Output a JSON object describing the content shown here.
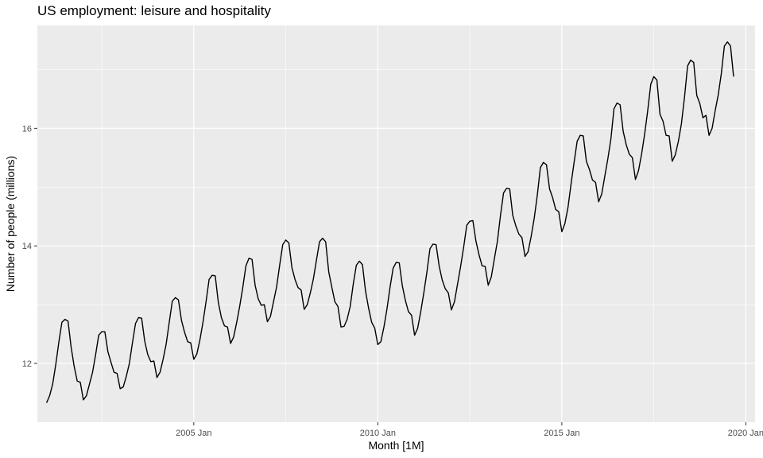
{
  "chart_data": {
    "type": "line",
    "title": "US employment: leisure and hospitality",
    "xlabel": "Month [1M]",
    "ylabel": "Number of people (millions)",
    "x_ticks": [
      "2005 Jan",
      "2010 Jan",
      "2015 Jan",
      "2020 Jan"
    ],
    "y_ticks": [
      12,
      14,
      16
    ],
    "xlim": [
      "2000-10",
      "2020-04"
    ],
    "ylim": [
      11.0,
      17.75
    ],
    "grid": true,
    "legend": "none",
    "colors": {
      "panel": "#ebebeb",
      "grid": "#ffffff",
      "line": "#000000"
    },
    "series": [
      {
        "start": "2001-01",
        "frequency": "monthly",
        "values": [
          11.33,
          11.45,
          11.65,
          11.98,
          12.36,
          12.7,
          12.75,
          12.72,
          12.28,
          11.95,
          11.7,
          11.68,
          11.38,
          11.45,
          11.65,
          11.85,
          12.15,
          12.48,
          12.54,
          12.54,
          12.2,
          12.02,
          11.85,
          11.83,
          11.57,
          11.6,
          11.78,
          12.0,
          12.35,
          12.68,
          12.78,
          12.77,
          12.38,
          12.15,
          12.03,
          12.04,
          11.76,
          11.85,
          12.07,
          12.33,
          12.7,
          13.06,
          13.12,
          13.08,
          12.73,
          12.53,
          12.37,
          12.35,
          12.07,
          12.16,
          12.4,
          12.7,
          13.05,
          13.43,
          13.5,
          13.49,
          13.04,
          12.78,
          12.64,
          12.62,
          12.34,
          12.45,
          12.7,
          12.98,
          13.3,
          13.66,
          13.79,
          13.77,
          13.33,
          13.1,
          12.99,
          13.0,
          12.71,
          12.8,
          13.05,
          13.3,
          13.67,
          14.02,
          14.1,
          14.05,
          13.63,
          13.43,
          13.29,
          13.25,
          12.92,
          13.0,
          13.2,
          13.44,
          13.76,
          14.07,
          14.13,
          14.07,
          13.56,
          13.3,
          13.05,
          12.97,
          12.62,
          12.63,
          12.75,
          12.97,
          13.35,
          13.67,
          13.74,
          13.68,
          13.23,
          12.94,
          12.7,
          12.6,
          12.32,
          12.37,
          12.62,
          12.93,
          13.3,
          13.62,
          13.72,
          13.71,
          13.32,
          13.07,
          12.88,
          12.82,
          12.48,
          12.6,
          12.88,
          13.2,
          13.55,
          13.95,
          14.03,
          14.02,
          13.66,
          13.42,
          13.27,
          13.2,
          12.91,
          13.05,
          13.35,
          13.65,
          13.98,
          14.35,
          14.42,
          14.43,
          14.08,
          13.85,
          13.66,
          13.65,
          13.33,
          13.47,
          13.78,
          14.08,
          14.52,
          14.9,
          14.98,
          14.97,
          14.52,
          14.34,
          14.2,
          14.14,
          13.82,
          13.9,
          14.16,
          14.47,
          14.86,
          15.33,
          15.42,
          15.38,
          14.97,
          14.82,
          14.62,
          14.58,
          14.24,
          14.38,
          14.65,
          15.05,
          15.42,
          15.78,
          15.88,
          15.87,
          15.44,
          15.3,
          15.12,
          15.08,
          14.75,
          14.88,
          15.18,
          15.48,
          15.82,
          16.33,
          16.43,
          16.4,
          15.95,
          15.72,
          15.56,
          15.5,
          15.13,
          15.28,
          15.56,
          15.9,
          16.3,
          16.75,
          16.88,
          16.82,
          16.24,
          16.12,
          15.88,
          15.87,
          15.44,
          15.55,
          15.78,
          16.08,
          16.53,
          17.06,
          17.16,
          17.12,
          16.56,
          16.42,
          16.18,
          16.22,
          15.88,
          16.0,
          16.3,
          16.57,
          16.93,
          17.4,
          17.47,
          17.4,
          16.88
        ]
      }
    ]
  }
}
